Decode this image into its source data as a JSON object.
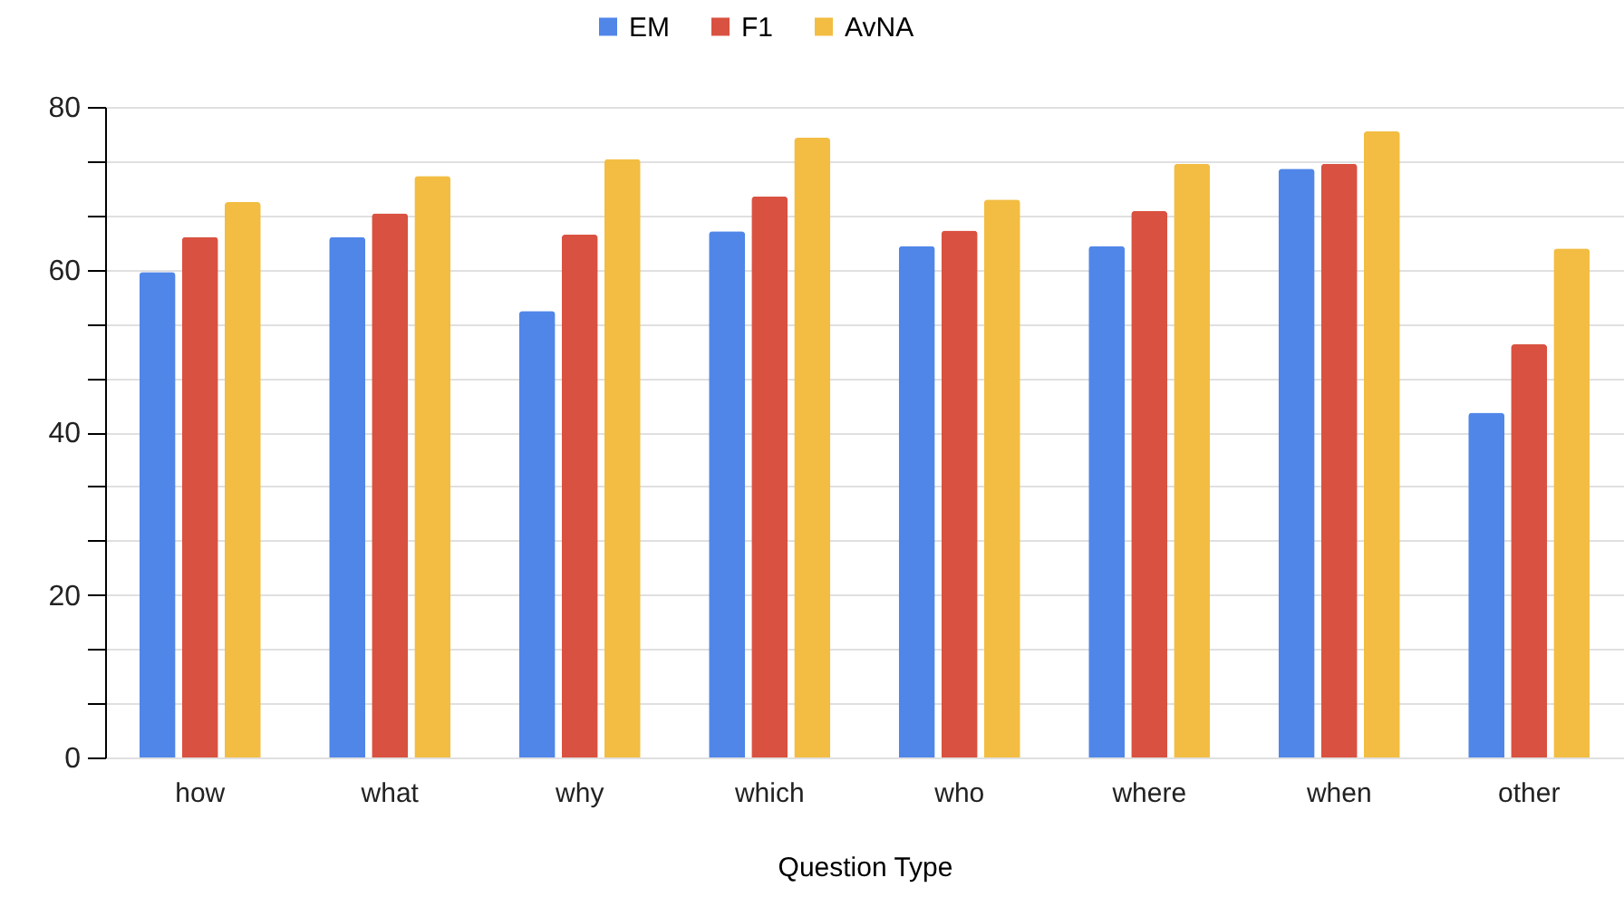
{
  "chart_data": {
    "type": "bar",
    "xlabel": "Question Type",
    "categories": [
      "how",
      "what",
      "why",
      "which",
      "who",
      "where",
      "when",
      "other"
    ],
    "series": [
      {
        "name": "EM",
        "color": "#5086e8",
        "values": [
          59.7,
          64.0,
          54.9,
          64.7,
          62.9,
          62.9,
          72.4,
          42.4
        ]
      },
      {
        "name": "F1",
        "color": "#d95140",
        "values": [
          64.0,
          66.9,
          64.3,
          69.0,
          64.8,
          67.2,
          73.0,
          50.8
        ]
      },
      {
        "name": "AvNA",
        "color": "#f2bd42",
        "values": [
          68.3,
          71.5,
          73.6,
          76.2,
          68.6,
          73.0,
          77.0,
          62.6
        ]
      }
    ],
    "ylim": [
      0,
      80
    ],
    "yticks": [
      0,
      {
        "value": 6.667,
        "label": null
      },
      {
        "value": 13.333,
        "label": null
      },
      20,
      {
        "value": 26.667,
        "label": null
      },
      {
        "value": 33.333,
        "label": null
      },
      40,
      {
        "value": 46.667,
        "label": null
      },
      {
        "value": 53.333,
        "label": null
      },
      60,
      {
        "value": 66.667,
        "label": null
      },
      {
        "value": 73.333,
        "label": null
      },
      80
    ],
    "grid": "y",
    "legend": "top"
  }
}
